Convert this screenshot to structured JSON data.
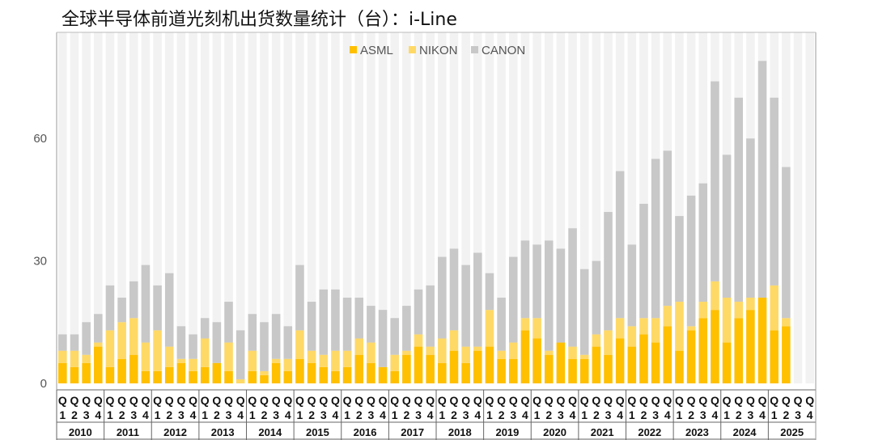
{
  "chart_data": {
    "type": "bar",
    "stacked": true,
    "title": "全球半导体前道光刻机出货数量统计（台）：i-Line",
    "xlabel": "",
    "ylabel": "",
    "ylim": [
      0,
      86
    ],
    "yticks": [
      0,
      30,
      60
    ],
    "grid": false,
    "legend_position": "top-center",
    "years": [
      "2010",
      "2011",
      "2012",
      "2013",
      "2014",
      "2015",
      "2016",
      "2017",
      "2018",
      "2019",
      "2020",
      "2021",
      "2022",
      "2023",
      "2024",
      "2025"
    ],
    "quarter_row": [
      "Q",
      "Q",
      "Q",
      "Q"
    ],
    "quarter_numbers": [
      "1",
      "2",
      "3",
      "4"
    ],
    "categories": [
      "2010Q1",
      "2010Q2",
      "2010Q3",
      "2010Q4",
      "2011Q1",
      "2011Q2",
      "2011Q3",
      "2011Q4",
      "2012Q1",
      "2012Q2",
      "2012Q3",
      "2012Q4",
      "2013Q1",
      "2013Q2",
      "2013Q3",
      "2013Q4",
      "2014Q1",
      "2014Q2",
      "2014Q3",
      "2014Q4",
      "2015Q1",
      "2015Q2",
      "2015Q3",
      "2015Q4",
      "2016Q1",
      "2016Q2",
      "2016Q3",
      "2016Q4",
      "2017Q1",
      "2017Q2",
      "2017Q3",
      "2017Q4",
      "2018Q1",
      "2018Q2",
      "2018Q3",
      "2018Q4",
      "2019Q1",
      "2019Q2",
      "2019Q3",
      "2019Q4",
      "2020Q1",
      "2020Q2",
      "2020Q3",
      "2020Q4",
      "2021Q1",
      "2021Q2",
      "2021Q3",
      "2021Q4",
      "2022Q1",
      "2022Q2",
      "2022Q3",
      "2022Q4",
      "2023Q1",
      "2023Q2",
      "2023Q3",
      "2023Q4",
      "2024Q1",
      "2024Q2",
      "2024Q3",
      "2024Q4",
      "2025Q1",
      "2025Q2",
      "2025Q3",
      "2025Q4"
    ],
    "series": [
      {
        "name": "ASML",
        "color": "#FFC000",
        "values": [
          5,
          4,
          5,
          9,
          4,
          6,
          7,
          3,
          3,
          4,
          5,
          3,
          4,
          5,
          3,
          0,
          3,
          2,
          5,
          3,
          6,
          5,
          4,
          3,
          4,
          7,
          5,
          4,
          3,
          7,
          9,
          7,
          5,
          8,
          5,
          8,
          9,
          6,
          6,
          13,
          11,
          7,
          10,
          6,
          6,
          9,
          7,
          11,
          9,
          12,
          10,
          14,
          8,
          13,
          16,
          18,
          10,
          16,
          18,
          21,
          13,
          14,
          null,
          null
        ]
      },
      {
        "name": "NIKON",
        "color": "#FFD966",
        "values": [
          3,
          4,
          2,
          1,
          9,
          9,
          9,
          7,
          10,
          5,
          1,
          3,
          7,
          0,
          7,
          1,
          5,
          1,
          1,
          3,
          7,
          3,
          3,
          5,
          4,
          4,
          5,
          0,
          4,
          1,
          3,
          2,
          6,
          5,
          4,
          1,
          9,
          2,
          4,
          3,
          5,
          1,
          0,
          3,
          1,
          3,
          6,
          5,
          5,
          4,
          6,
          5,
          12,
          1,
          4,
          7,
          11,
          4,
          3,
          0,
          11,
          2,
          null,
          null
        ]
      },
      {
        "name": "CANON",
        "color": "#C8C8C8",
        "values": [
          4,
          4,
          8,
          7,
          11,
          6,
          9,
          19,
          11,
          18,
          8,
          6,
          5,
          10,
          10,
          12,
          9,
          12,
          11,
          8,
          16,
          12,
          16,
          15,
          13,
          10,
          9,
          14,
          9,
          11,
          11,
          15,
          20,
          20,
          20,
          23,
          9,
          13,
          21,
          19,
          18,
          27,
          23,
          29,
          21,
          18,
          29,
          36,
          20,
          28,
          39,
          38,
          21,
          32,
          29,
          49,
          35,
          50,
          39,
          58,
          46,
          37,
          null,
          null
        ]
      }
    ]
  },
  "background_bar_color": "#F2F2F2"
}
